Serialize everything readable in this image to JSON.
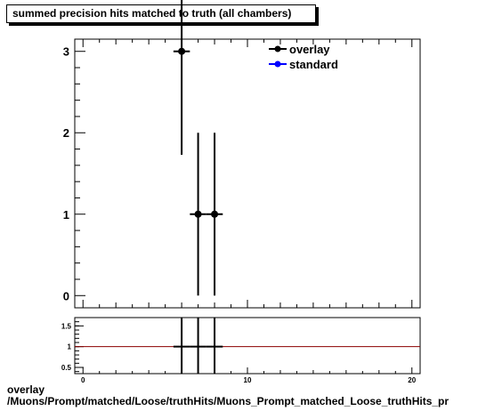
{
  "title": "summed precision hits matched to truth (all chambers)",
  "footer": {
    "line1": "overlay",
    "line2": "/Muons/Prompt/matched/Loose/truthHits/Muons_Prompt_matched_Loose_truthHits_pr"
  },
  "chart_data": [
    {
      "type": "scatter",
      "title": "summed precision hits matched to truth (all chambers)",
      "xlim": [
        -0.5,
        20.5
      ],
      "ylim": [
        -0.15,
        3.15
      ],
      "y_ticks": [
        0,
        1,
        2,
        3
      ],
      "legend": {
        "position": "top-right",
        "entries": [
          {
            "name": "overlay",
            "color": "#000000"
          },
          {
            "name": "standard",
            "color": "#0000ff"
          }
        ]
      },
      "series": [
        {
          "name": "overlay",
          "color": "#000000",
          "points": [
            {
              "x": 6,
              "y": 3,
              "xerr": 0.5,
              "yerr_low": 1.27,
              "yerr_high": 1.27
            },
            {
              "x": 7,
              "y": 1,
              "xerr": 0.5,
              "yerr_low": 1.0,
              "yerr_high": 1.0
            },
            {
              "x": 8,
              "y": 1,
              "xerr": 0.5,
              "yerr_low": 1.0,
              "yerr_high": 1.0
            }
          ]
        },
        {
          "name": "standard",
          "color": "#0000ff",
          "points": []
        }
      ]
    },
    {
      "type": "line",
      "xlim": [
        -0.5,
        20.5
      ],
      "ylim": [
        0.35,
        1.7
      ],
      "x_ticks": [
        0,
        10,
        20
      ],
      "y_ticks": [
        0.5,
        1,
        1.5
      ],
      "reference_line": {
        "y": 1,
        "color": "#8b0000"
      },
      "ratio_segments": [
        {
          "x": 6,
          "y": 1
        },
        {
          "x": 7,
          "y": 1
        },
        {
          "x": 8,
          "y": 1
        }
      ]
    }
  ]
}
